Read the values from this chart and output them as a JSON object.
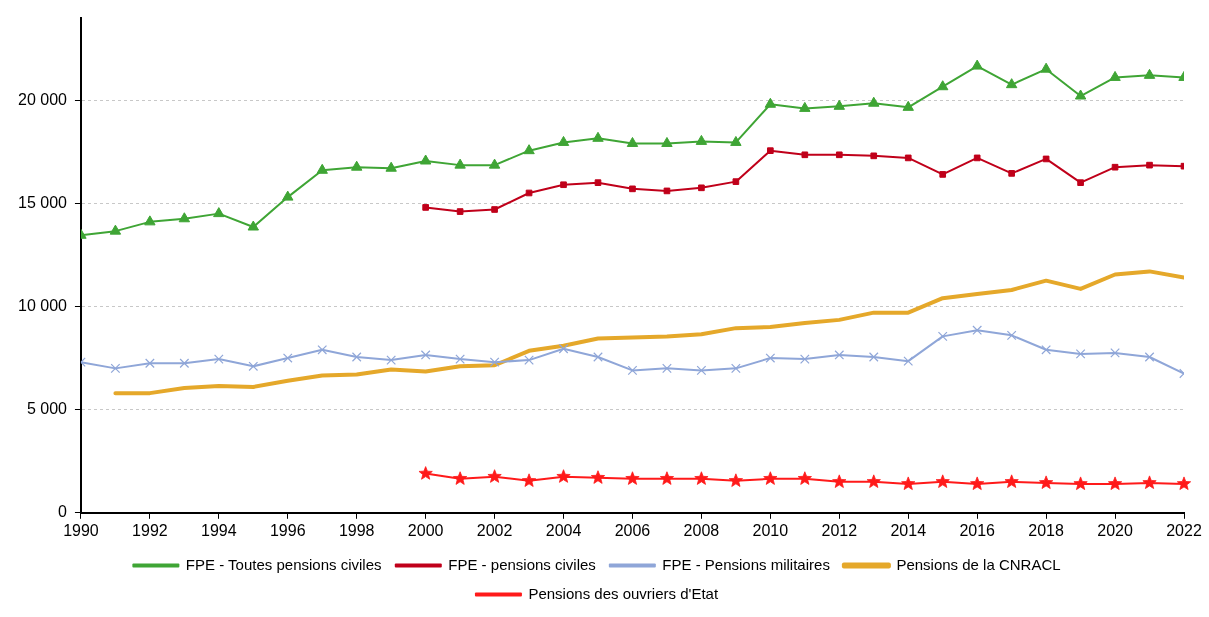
{
  "chart_data": {
    "type": "line",
    "x": [
      1990,
      1991,
      1992,
      1993,
      1994,
      1995,
      1996,
      1997,
      1998,
      1999,
      2000,
      2001,
      2002,
      2003,
      2004,
      2005,
      2006,
      2007,
      2008,
      2009,
      2010,
      2011,
      2012,
      2013,
      2014,
      2015,
      2016,
      2017,
      2018,
      2019,
      2020,
      2021,
      2022
    ],
    "xlim": [
      1990,
      2022
    ],
    "xticks": [
      1990,
      1992,
      1994,
      1996,
      1998,
      2000,
      2002,
      2004,
      2006,
      2008,
      2010,
      2012,
      2014,
      2016,
      2018,
      2020,
      2022
    ],
    "ylim": [
      0,
      24000
    ],
    "yticks": [
      0,
      {
        "value": 5000,
        "label": "5 000"
      },
      {
        "value": 10000,
        "label": "10 000"
      },
      {
        "value": 15000,
        "label": "15 000"
      },
      {
        "value": 20000,
        "label": "20 000"
      }
    ],
    "grid": "y",
    "legend": "bottom",
    "line_style": "solid",
    "series": [
      {
        "name": "FPE - Toutes pensions civiles",
        "color": "#3fa535",
        "marker": "triangle",
        "values": [
          13450,
          13650,
          14100,
          14250,
          14500,
          13850,
          15300,
          16600,
          16750,
          16700,
          17050,
          16850,
          16850,
          17550,
          17950,
          18150,
          17900,
          17900,
          18000,
          17950,
          19800,
          19600,
          19700,
          19850,
          19650,
          20650,
          21650,
          20750,
          21500,
          20200,
          21100,
          21200,
          21100
        ]
      },
      {
        "name": "FPE - pensions civiles",
        "color": "#c0001a",
        "marker": "square",
        "values": [
          null,
          null,
          null,
          null,
          null,
          null,
          null,
          null,
          null,
          null,
          14800,
          14600,
          14700,
          15500,
          15900,
          16000,
          15700,
          15600,
          15750,
          16050,
          17550,
          17350,
          17350,
          17300,
          17200,
          16400,
          17200,
          16450,
          17150,
          16000,
          16750,
          16850,
          16800
        ]
      },
      {
        "name": "FPE - Pensions militaires",
        "color": "#8fa6d8",
        "marker": "cross",
        "values": [
          7300,
          7000,
          7250,
          7250,
          7450,
          7100,
          7500,
          7900,
          7550,
          7400,
          7650,
          7450,
          7300,
          7400,
          7950,
          7550,
          6900,
          7000,
          6900,
          7000,
          7500,
          7450,
          7650,
          7550,
          7350,
          8550,
          8850,
          8600,
          7900,
          7700,
          7750,
          7550,
          6750
        ]
      },
      {
        "name": "Pensions de la CNRACL",
        "color": "#e5a82a",
        "marker": "none",
        "values": [
          null,
          5800,
          5800,
          6050,
          6150,
          6100,
          6400,
          6650,
          6700,
          6950,
          6850,
          7100,
          7150,
          7850,
          8100,
          8450,
          8500,
          8550,
          8650,
          8950,
          9000,
          9200,
          9350,
          9700,
          9700,
          10400,
          10600,
          10800,
          11250,
          10850,
          11550,
          11700,
          11400
        ]
      },
      {
        "name": "Pensions des ouvriers d'Etat",
        "color": "#ff1a1a",
        "marker": "star",
        "values": [
          null,
          null,
          null,
          null,
          null,
          null,
          null,
          null,
          null,
          null,
          1900,
          1650,
          1750,
          1550,
          1750,
          1700,
          1650,
          1650,
          1650,
          1550,
          1650,
          1650,
          1500,
          1500,
          1400,
          1500,
          1400,
          1500,
          1450,
          1400,
          1400,
          1450,
          1400
        ]
      }
    ]
  }
}
